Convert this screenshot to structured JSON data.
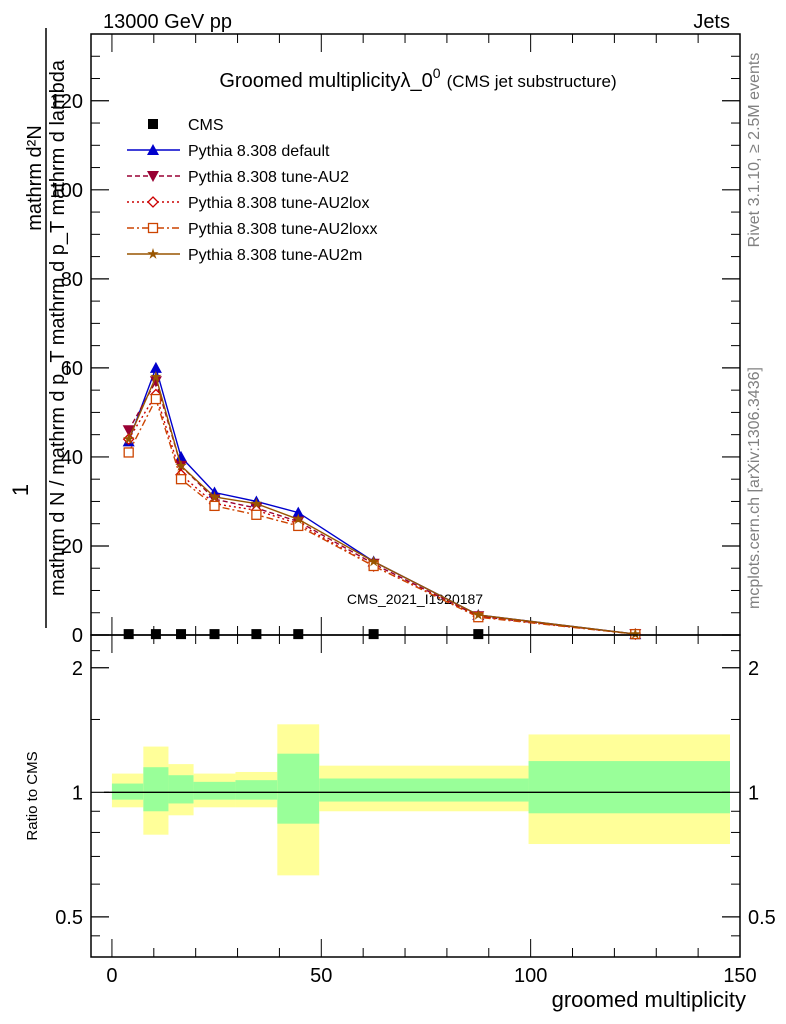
{
  "header": {
    "left": "13000 GeV pp",
    "right": "Jets"
  },
  "side_labels": {
    "rivet": "Rivet 3.1.10, ≥ 2.5M events",
    "mcplots": "mcplots.cern.ch [arXiv:1306.3436]"
  },
  "watermark": "CMS_2021_I1920187",
  "chart_data": [
    {
      "type": "line",
      "title": "Groomed multiplicityλ_0",
      "title_sup": "0",
      "title_suffix": "(CMS jet substructure)",
      "ylabel_numerator": "mathrm d²N",
      "ylabel_denominator": "mathrm d N / mathrm d p_T mathrm d p_T mathrm d lambda",
      "ylabel_prefix": "1",
      "xlim": [
        -5,
        150
      ],
      "ylim": [
        0,
        135
      ],
      "yticks": [
        0,
        20,
        40,
        60,
        80,
        100,
        120
      ],
      "legend_position": "top-left",
      "x": [
        4,
        10.5,
        16.5,
        24.5,
        34.5,
        44.5,
        62.5,
        87.5,
        125
      ],
      "series": [
        {
          "name": "CMS",
          "color": "#000000",
          "marker": "square",
          "values": [
            0.2,
            0.2,
            0.2,
            0.2,
            0.2,
            0.2,
            0.2,
            0.2,
            0.2
          ]
        },
        {
          "name": "Pythia 8.308 default",
          "color": "#0000cc",
          "marker": "triangle-up",
          "dash": "solid",
          "values": [
            43.5,
            60,
            40,
            32,
            30,
            27.5,
            16.5,
            4.5,
            0.2
          ]
        },
        {
          "name": "Pythia 8.308 tune-AU2",
          "color": "#990033",
          "marker": "triangle-down",
          "dash": "dash",
          "values": [
            46,
            57,
            38,
            30.5,
            28.5,
            25.5,
            16,
            4.2,
            0.2
          ]
        },
        {
          "name": "Pythia 8.308 tune-AU2lox",
          "color": "#cc0000",
          "marker": "diamond",
          "dash": "dot",
          "values": [
            44,
            54,
            36,
            29.5,
            28,
            25,
            15.5,
            4.2,
            0.2
          ]
        },
        {
          "name": "Pythia 8.308 tune-AU2loxx",
          "color": "#cc4400",
          "marker": "open-square",
          "dash": "dashdot",
          "values": [
            41,
            53,
            35,
            29,
            27,
            24.5,
            15.5,
            4.0,
            0.2
          ]
        },
        {
          "name": "Pythia 8.308 tune-AU2m",
          "color": "#995500",
          "marker": "star",
          "dash": "solid",
          "values": [
            44,
            58,
            38,
            31,
            29.5,
            26,
            16.5,
            4.5,
            0.2
          ]
        }
      ]
    },
    {
      "type": "area",
      "ylabel": "Ratio to CMS",
      "xlabel": "groomed multiplicity",
      "ylim": [
        0.4,
        2.4
      ],
      "yticks": [
        0.5,
        1,
        2
      ],
      "xticks": [
        0,
        50,
        100,
        150
      ],
      "reference_line": 1,
      "bands": [
        {
          "x0": 0,
          "x1": 7.5,
          "green": [
            0.96,
            1.05
          ],
          "yellow": [
            0.92,
            1.11
          ]
        },
        {
          "x0": 7.5,
          "x1": 13.5,
          "green": [
            0.9,
            1.15
          ],
          "yellow": [
            0.79,
            1.29
          ]
        },
        {
          "x0": 13.5,
          "x1": 19.5,
          "green": [
            0.94,
            1.1
          ],
          "yellow": [
            0.88,
            1.17
          ]
        },
        {
          "x0": 19.5,
          "x1": 29.5,
          "green": [
            0.96,
            1.06
          ],
          "yellow": [
            0.92,
            1.11
          ]
        },
        {
          "x0": 29.5,
          "x1": 39.5,
          "green": [
            0.96,
            1.07
          ],
          "yellow": [
            0.92,
            1.12
          ]
        },
        {
          "x0": 39.5,
          "x1": 49.5,
          "green": [
            0.84,
            1.24
          ],
          "yellow": [
            0.63,
            1.46
          ]
        },
        {
          "x0": 49.5,
          "x1": 99.5,
          "green": [
            0.95,
            1.08
          ],
          "yellow": [
            0.9,
            1.16
          ]
        },
        {
          "x0": 99.5,
          "x1": 150,
          "green": [
            0.89,
            1.19
          ],
          "yellow": [
            0.75,
            1.38
          ]
        }
      ]
    }
  ]
}
